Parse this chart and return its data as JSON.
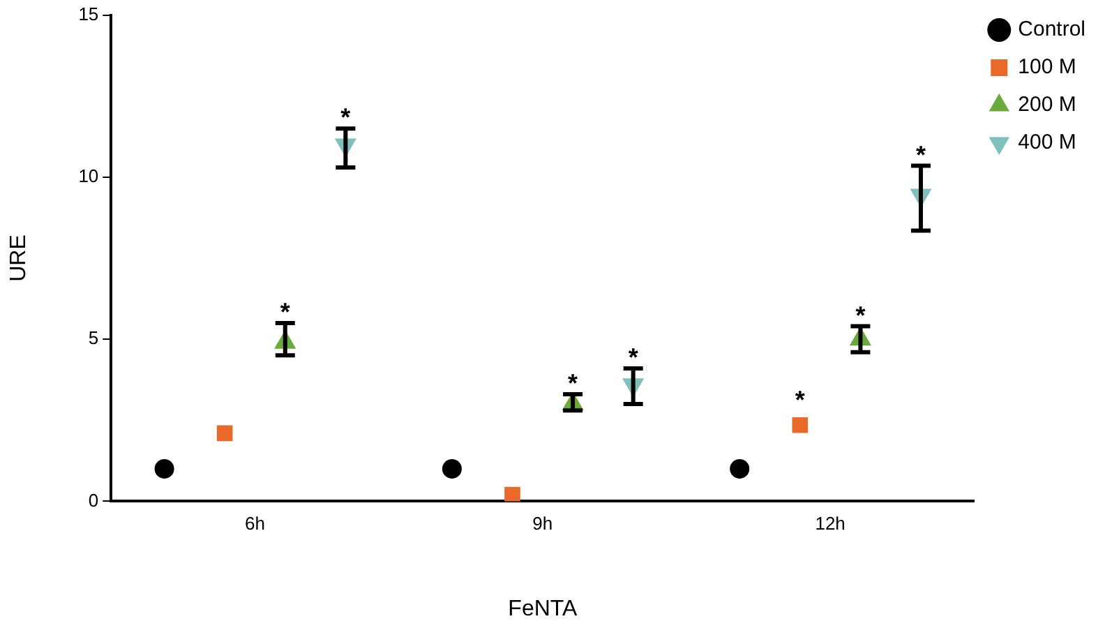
{
  "chart_data": {
    "type": "scatter",
    "xlabel": "FeNTA",
    "ylabel": "URE",
    "categories": [
      "6h",
      "9h",
      "12h"
    ],
    "series": [
      {
        "name": "Control",
        "color": "#000000",
        "marker": "circle",
        "values": [
          1,
          1,
          1
        ]
      },
      {
        "name": "100 M",
        "color": "#e8692a",
        "marker": "square",
        "values": [
          2.1,
          0.2,
          2.35
        ],
        "value_labels": [
          null,
          null,
          "*"
        ]
      },
      {
        "name": "200 M",
        "color": "#6aaa3a",
        "marker": "triangle",
        "values": [
          4.9,
          3.0,
          5.0
        ],
        "errors": [
          [
            4.5,
            5.5
          ],
          [
            2.8,
            3.3
          ],
          [
            4.6,
            5.4
          ]
        ],
        "value_labels": [
          "*",
          "*",
          "*"
        ]
      },
      {
        "name": "400 M",
        "color": "#7fbfbc",
        "marker": "triangle-down",
        "values": [
          11.0,
          3.6,
          9.45
        ],
        "errors": [
          [
            10.3,
            11.5
          ],
          [
            3.0,
            4.1
          ],
          [
            8.35,
            10.35
          ]
        ],
        "value_labels": [
          "*",
          "*",
          "*"
        ]
      }
    ],
    "ylim": [
      0,
      15
    ],
    "yticks": [
      0,
      5,
      10,
      15
    ],
    "grid": false,
    "legend": "right"
  }
}
